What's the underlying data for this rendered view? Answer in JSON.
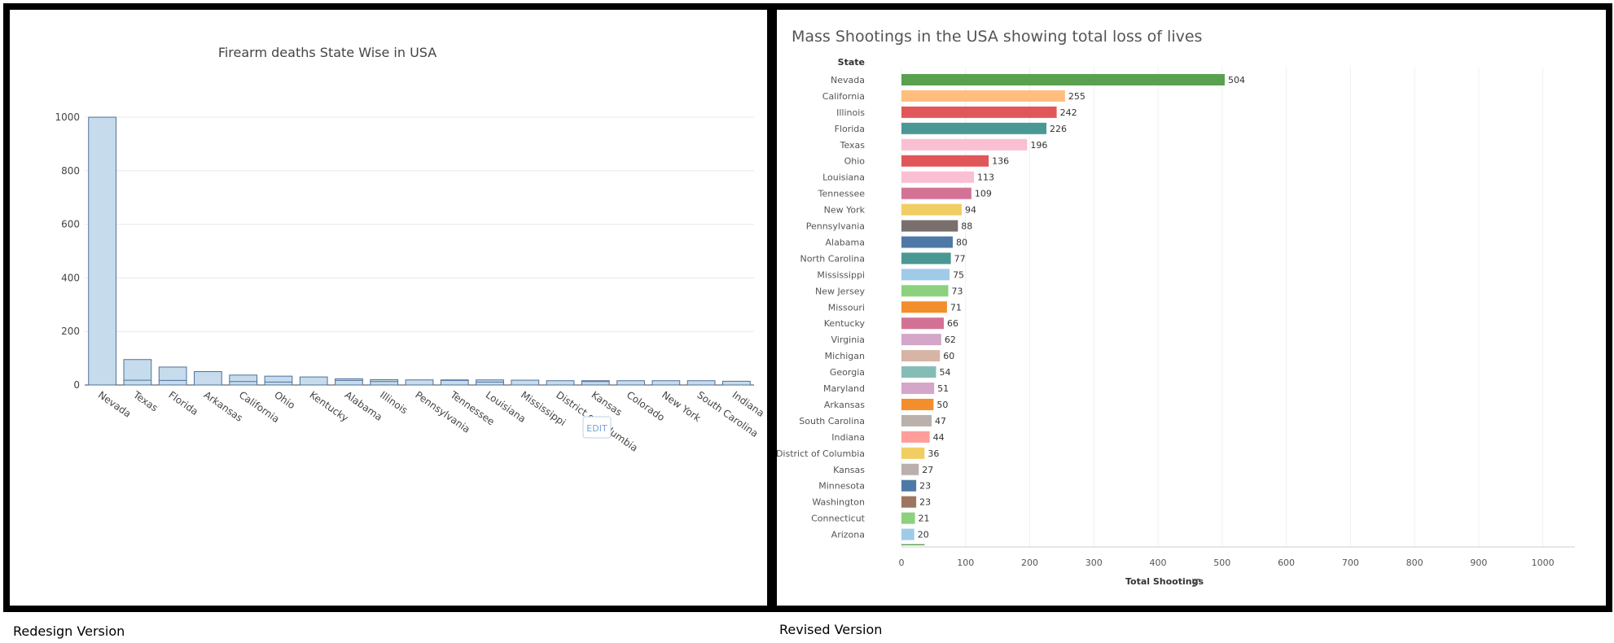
{
  "captions": {
    "left": "Redesign Version",
    "right": "Revised Version"
  },
  "edit_label": "EDIT",
  "chart_data": [
    {
      "type": "bar",
      "title": "Firearm deaths State Wise in USA",
      "xlabel": "",
      "ylabel": "",
      "categories": [
        "Nevada",
        "Texas",
        "Florida",
        "Arkansas",
        "California",
        "Ohio",
        "Kentucky",
        "Alabama",
        "Illinois",
        "Pennsylvania",
        "Tennessee",
        "Louisiana",
        "Mississippi",
        "District of Columbia",
        "Kansas",
        "Colorado",
        "New York",
        "South Carolina",
        "Indiana"
      ],
      "values": [
        1000,
        95,
        67,
        50,
        37,
        33,
        30,
        23,
        20,
        19,
        19,
        19,
        18,
        16,
        16,
        16,
        16,
        16,
        14
      ],
      "inner_values": [
        0,
        18,
        17,
        0,
        13,
        11,
        0,
        17,
        13,
        0,
        17,
        11,
        0,
        0,
        13,
        0,
        0,
        0,
        0
      ],
      "ylim": [
        0,
        1000
      ],
      "yticks": [
        0,
        200,
        400,
        600,
        800,
        1000
      ],
      "grid": true,
      "legend": "none",
      "bar_fill": "#c6dcec",
      "bar_stroke": "#4f6f9b"
    },
    {
      "type": "bar",
      "orientation": "horizontal",
      "title": "Mass Shootings in the USA showing total loss of lives",
      "xlabel": "Total Shootings",
      "ylabel": "State",
      "categories": [
        "Nevada",
        "California",
        "Illinois",
        "Florida",
        "Texas",
        "Ohio",
        "Louisiana",
        "Tennessee",
        "New York",
        "Pennsylvania",
        "Alabama",
        "North Carolina",
        "Mississippi",
        "New Jersey",
        "Missouri",
        "Kentucky",
        "Virginia",
        "Michigan",
        "Georgia",
        "Maryland",
        "Arkansas",
        "South Carolina",
        "Indiana",
        "District of Columbia",
        "Kansas",
        "Minnesota",
        "Washington",
        "Connecticut",
        "Arizona"
      ],
      "values": [
        504,
        255,
        242,
        226,
        196,
        136,
        113,
        109,
        94,
        88,
        80,
        77,
        75,
        73,
        71,
        66,
        62,
        60,
        54,
        51,
        50,
        47,
        44,
        36,
        27,
        23,
        23,
        21,
        20
      ],
      "colors": [
        "#59a14f",
        "#ffbe7d",
        "#e15759",
        "#499894",
        "#fabfd2",
        "#e15759",
        "#fabfd2",
        "#d37295",
        "#f1ce63",
        "#79706e",
        "#4e79a7",
        "#499894",
        "#a0cbe8",
        "#8cd17d",
        "#f28e2b",
        "#d37295",
        "#d4a6c8",
        "#d7b5a6",
        "#86bcb6",
        "#d4a6c8",
        "#f28e2b",
        "#bab0ac",
        "#ff9d9a",
        "#f1ce63",
        "#bab0ac",
        "#4e79a7",
        "#9d7660",
        "#8cd17d",
        "#a0cbe8"
      ],
      "partial_bar_color": "#59a14f",
      "partial_bar_value": 36,
      "xlim": [
        0,
        1050
      ],
      "xticks": [
        0,
        100,
        200,
        300,
        400,
        500,
        600,
        700,
        800,
        900,
        1000
      ],
      "grid": true,
      "legend": "none"
    }
  ]
}
